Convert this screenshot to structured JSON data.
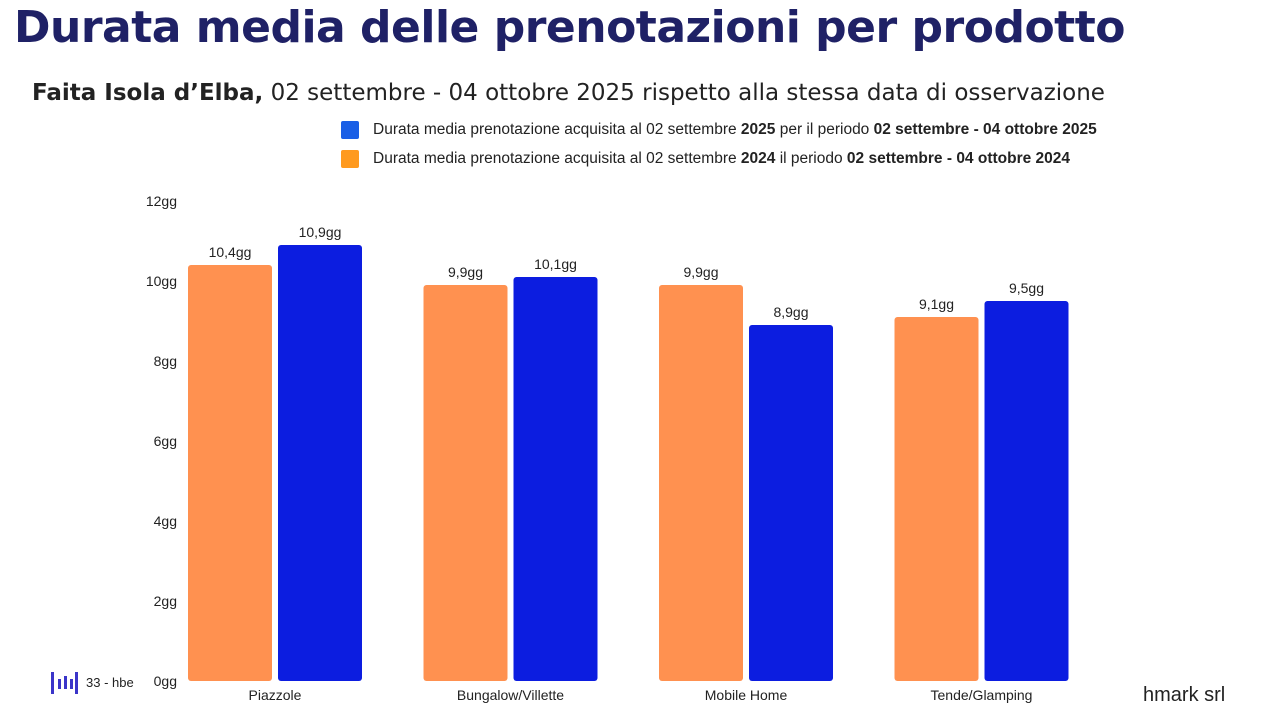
{
  "header": {
    "title": "Durata media delle prenotazioni per prodotto",
    "subtitle_bold": "Faita Isola d’Elba,",
    "subtitle_rest": " 02 settembre - 04 ottobre 2025 rispetto alla stessa data di osservazione"
  },
  "legend": [
    {
      "color": "#1a5fe6",
      "pre": "Durata media prenotazione acquisita al 02 settembre ",
      "year": "2025",
      "mid": " per il periodo ",
      "period": "02 settembre - 04 ottobre 2025"
    },
    {
      "color": "#ff9a1f",
      "pre": "Durata media prenotazione acquisita al 02 settembre ",
      "year": "2024",
      "mid": " il periodo ",
      "period": "02 settembre - 04 ottobre 2024"
    }
  ],
  "chart_data": {
    "type": "bar",
    "title": "Durata media delle prenotazioni per prodotto",
    "categories": [
      "Piazzole",
      "Bungalow/Villette",
      "Mobile Home",
      "Tende/Glamping"
    ],
    "series": [
      {
        "name": "Durata media prenotazione acquisita al 02 settembre 2024 il periodo 02 settembre - 04 ottobre 2024",
        "color": "#ff9150",
        "values": [
          10.4,
          9.9,
          9.9,
          9.1
        ],
        "labels": [
          "10,4gg",
          "9,9gg",
          "9,9gg",
          "9,1gg"
        ]
      },
      {
        "name": "Durata media prenotazione acquisita al 02 settembre 2025 per il periodo 02 settembre - 04 ottobre 2025",
        "color": "#0c1de0",
        "values": [
          10.9,
          10.1,
          8.9,
          9.5
        ],
        "labels": [
          "10,9gg",
          "10,1gg",
          "8,9gg",
          "9,5gg"
        ]
      }
    ],
    "ylim": [
      0,
      12
    ],
    "yticks": [
      0,
      2,
      4,
      6,
      8,
      10,
      12
    ],
    "ytick_labels": [
      "0gg",
      "2gg",
      "4gg",
      "6gg",
      "8gg",
      "10gg",
      "12gg"
    ],
    "xlabel": "",
    "ylabel": "",
    "grid": false
  },
  "footer": {
    "page": "33 - hbe",
    "brand": "hmark srl"
  }
}
